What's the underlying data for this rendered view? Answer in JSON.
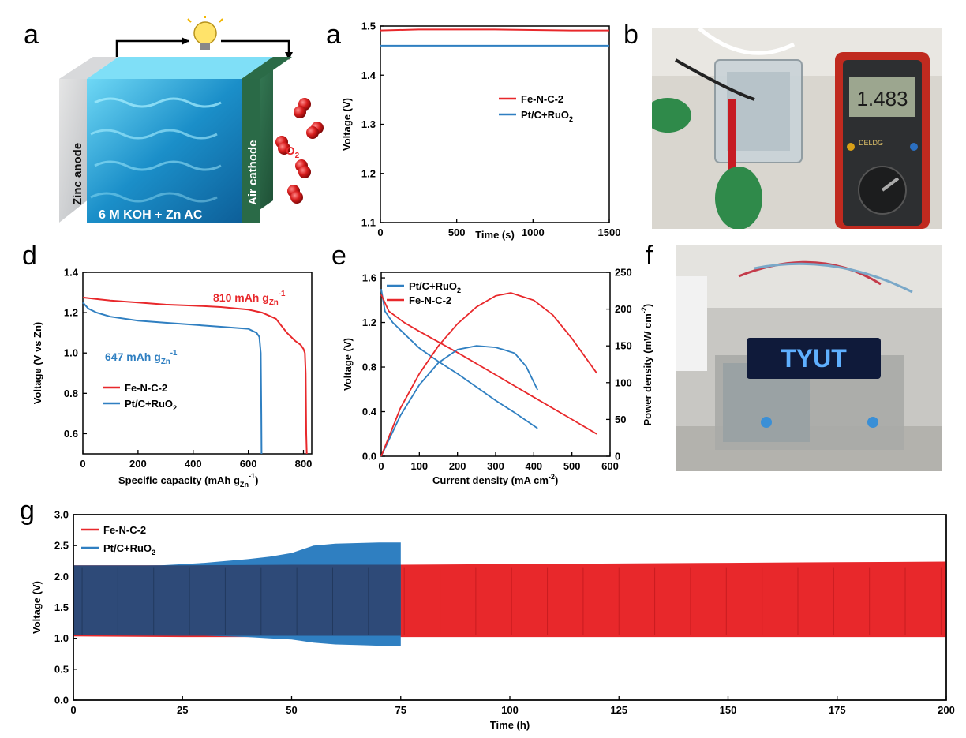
{
  "panel_letters": {
    "a1": "a",
    "a2": "a",
    "b": "b",
    "d": "d",
    "e": "e",
    "f": "f",
    "g": "g"
  },
  "schematic": {
    "anode_label": "Zinc anode",
    "cathode_label": "Air cathode",
    "electrolyte_label": "6 M KOH + Zn AC",
    "o2_label": "O",
    "o2_sub": "2"
  },
  "photo_b": {
    "multimeter_reading": "1.483",
    "meter_brand": "DELDG"
  },
  "photo_f": {
    "led_text": "TYUT"
  },
  "colors": {
    "fe_n_c": "#e8282b",
    "pt_c": "#2f7fc1",
    "overlap": "#2e4a78"
  },
  "chart_data": [
    {
      "id": "a",
      "type": "line",
      "xlabel": "Time (s)",
      "ylabel": "Voltage (V)",
      "xlim": [
        0,
        1500
      ],
      "ylim": [
        1.1,
        1.5
      ],
      "xticks": [
        0,
        500,
        1000,
        1500
      ],
      "yticks": [
        1.1,
        1.2,
        1.3,
        1.4,
        1.5
      ],
      "legend": "center-right",
      "series": [
        {
          "name": "Fe-N-C-2",
          "color": "#e8282b",
          "x": [
            0,
            250,
            500,
            750,
            1000,
            1250,
            1500
          ],
          "y": [
            1.491,
            1.493,
            1.493,
            1.493,
            1.492,
            1.491,
            1.491
          ]
        },
        {
          "name": "Pt/C+RuO2",
          "color": "#2f7fc1",
          "x": [
            0,
            250,
            500,
            750,
            1000,
            1250,
            1500
          ],
          "y": [
            1.46,
            1.46,
            1.46,
            1.46,
            1.46,
            1.46,
            1.46
          ]
        }
      ]
    },
    {
      "id": "d",
      "type": "line",
      "xlabel": "Specific capacity (mAh g",
      "xlabel_sub": "Zn",
      "xlabel_sup": "-1",
      "xlabel_end": ")",
      "ylabel": "Voltage (V vs Zn)",
      "xlim": [
        0,
        830
      ],
      "ylim": [
        0.5,
        1.4
      ],
      "xticks": [
        0,
        200,
        400,
        600,
        800
      ],
      "yticks": [
        0.6,
        0.8,
        1.0,
        1.2,
        1.4
      ],
      "legend": "bottom-left",
      "annotations": [
        {
          "text": "810 mAh g",
          "sub": "Zn",
          "sup": "-1",
          "color": "#e8282b"
        },
        {
          "text": "647 mAh g",
          "sub": "Zn",
          "sup": "-1",
          "color": "#2f7fc1"
        }
      ],
      "series": [
        {
          "name": "Fe-N-C-2",
          "color": "#e8282b",
          "x": [
            0,
            100,
            200,
            300,
            400,
            500,
            600,
            650,
            700,
            740,
            770,
            790,
            800,
            805,
            808,
            810,
            812
          ],
          "y": [
            1.275,
            1.26,
            1.25,
            1.24,
            1.235,
            1.228,
            1.215,
            1.2,
            1.17,
            1.1,
            1.06,
            1.04,
            1.02,
            1.0,
            0.9,
            0.6,
            0.5
          ]
        },
        {
          "name": "Pt/C+RuO2",
          "color": "#2f7fc1",
          "x": [
            0,
            20,
            50,
            100,
            200,
            300,
            400,
            500,
            600,
            630,
            640,
            645,
            647,
            648
          ],
          "y": [
            1.25,
            1.22,
            1.2,
            1.18,
            1.16,
            1.15,
            1.14,
            1.13,
            1.12,
            1.1,
            1.08,
            1.0,
            0.7,
            0.5
          ]
        }
      ]
    },
    {
      "id": "e",
      "type": "line",
      "xlabel": "Current density (mA cm",
      "xlabel_sup": "-2",
      "xlabel_end": ")",
      "ylabel": "Voltage (V)",
      "y2label": "Power density (mW cm",
      "y2label_sup": "-2",
      "y2label_end": ")",
      "xlim": [
        0,
        600
      ],
      "ylim": [
        0,
        1.65
      ],
      "y2lim": [
        0,
        250
      ],
      "xticks": [
        0,
        100,
        200,
        300,
        400,
        500,
        600
      ],
      "yticks": [
        0.0,
        0.4,
        0.8,
        1.2,
        1.6
      ],
      "y2ticks": [
        0,
        50,
        100,
        150,
        200,
        250
      ],
      "legend": "top-left",
      "series": [
        {
          "name": "Pt/C+RuO2",
          "color": "#2f7fc1",
          "axis": "left",
          "x": [
            0,
            10,
            30,
            60,
            100,
            150,
            200,
            250,
            300,
            350,
            410
          ],
          "y": [
            1.5,
            1.3,
            1.2,
            1.1,
            0.97,
            0.85,
            0.74,
            0.62,
            0.5,
            0.39,
            0.25
          ]
        },
        {
          "name": "Fe-N-C-2",
          "color": "#e8282b",
          "axis": "left",
          "x": [
            0,
            20,
            60,
            100,
            200,
            300,
            400,
            500,
            565
          ],
          "y": [
            1.45,
            1.3,
            1.2,
            1.12,
            0.93,
            0.73,
            0.53,
            0.33,
            0.2
          ]
        },
        {
          "name": "Pt/C+RuO2",
          "color": "#2f7fc1",
          "axis": "right",
          "x": [
            0,
            50,
            100,
            150,
            200,
            250,
            300,
            320,
            350,
            380,
            410
          ],
          "y": [
            0,
            55,
            97,
            127,
            145,
            150,
            148,
            145,
            140,
            122,
            90
          ]
        },
        {
          "name": "Fe-N-C-2",
          "color": "#e8282b",
          "axis": "right",
          "x": [
            0,
            50,
            100,
            150,
            200,
            250,
            300,
            340,
            400,
            450,
            500,
            565
          ],
          "y": [
            0,
            65,
            112,
            150,
            180,
            203,
            218,
            222,
            212,
            192,
            160,
            113
          ]
        }
      ]
    },
    {
      "id": "g",
      "type": "area",
      "xlabel": "Time (h)",
      "ylabel": "Voltage (V)",
      "xlim": [
        0,
        200
      ],
      "ylim": [
        0,
        3.0
      ],
      "xticks": [
        0,
        25,
        50,
        75,
        100,
        125,
        150,
        175,
        200
      ],
      "yticks": [
        0.0,
        0.5,
        1.0,
        1.5,
        2.0,
        2.5,
        3.0
      ],
      "legend": "top-left",
      "series": [
        {
          "name": "Fe-N-C-2",
          "color": "#e8282b",
          "x": [
            0,
            25,
            50,
            75,
            100,
            125,
            150,
            175,
            200
          ],
          "upper": [
            2.18,
            2.18,
            2.19,
            2.19,
            2.2,
            2.21,
            2.22,
            2.23,
            2.24
          ],
          "lower": [
            1.03,
            1.02,
            1.02,
            1.02,
            1.02,
            1.02,
            1.02,
            1.02,
            1.02
          ]
        },
        {
          "name": "Pt/C+RuO2",
          "color": "#2f7fc1",
          "x": [
            0,
            10,
            20,
            25,
            30,
            35,
            40,
            45,
            50,
            55,
            60,
            65,
            70,
            75
          ],
          "upper": [
            2.17,
            2.17,
            2.18,
            2.2,
            2.22,
            2.25,
            2.28,
            2.32,
            2.38,
            2.5,
            2.53,
            2.54,
            2.55,
            2.55
          ],
          "lower": [
            1.05,
            1.05,
            1.05,
            1.05,
            1.04,
            1.03,
            1.02,
            1.0,
            0.98,
            0.93,
            0.9,
            0.89,
            0.88,
            0.88
          ]
        }
      ]
    }
  ]
}
